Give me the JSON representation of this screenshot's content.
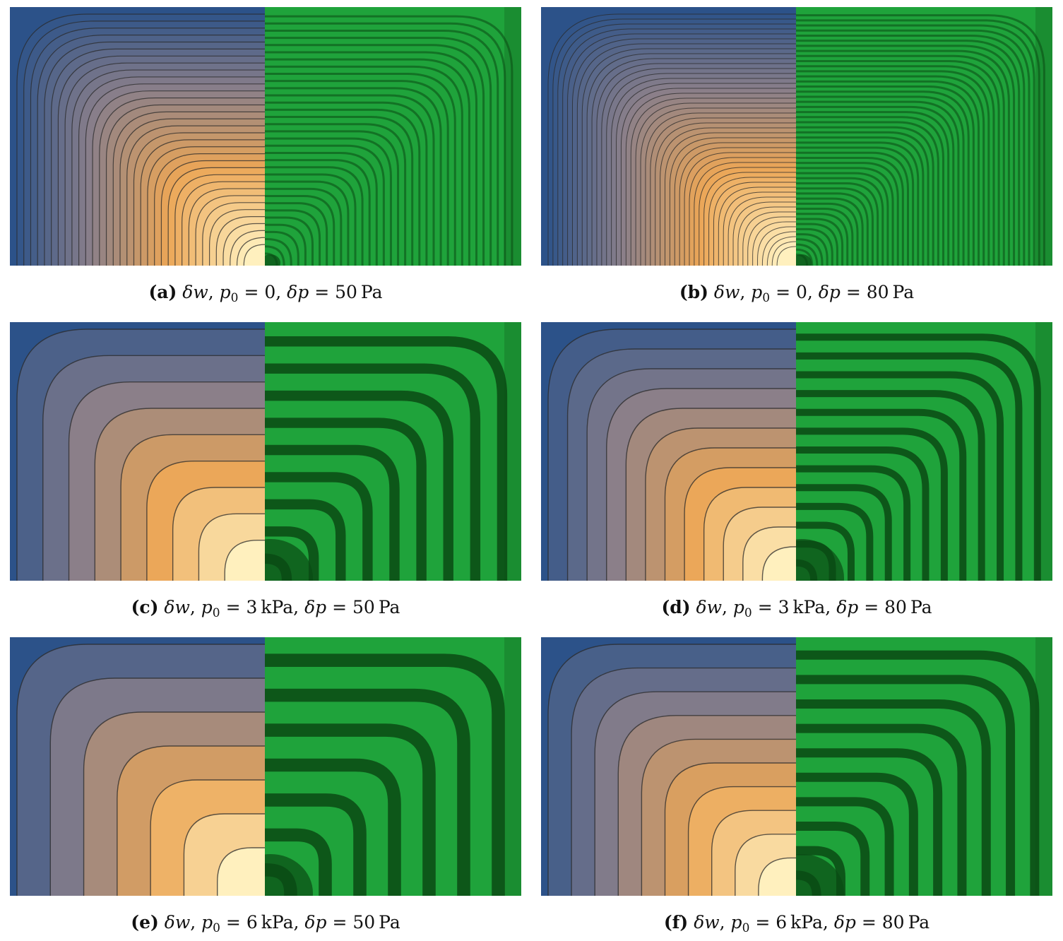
{
  "figure": {
    "panels": [
      {
        "id": "a",
        "label": "(a)",
        "var": "δw",
        "p0": "0",
        "dp": "50",
        "unit_dp": "Pa",
        "unit_p0": ""
      },
      {
        "id": "b",
        "label": "(b)",
        "var": "δw",
        "p0": "0",
        "dp": "80",
        "unit_dp": "Pa",
        "unit_p0": ""
      },
      {
        "id": "c",
        "label": "(c)",
        "var": "δw",
        "p0": "3",
        "dp": "50",
        "unit_dp": "Pa",
        "unit_p0": "kPa"
      },
      {
        "id": "d",
        "label": "(d)",
        "var": "δw",
        "p0": "3",
        "dp": "80",
        "unit_dp": "Pa",
        "unit_p0": "kPa"
      },
      {
        "id": "e",
        "label": "(e)",
        "var": "δw",
        "p0": "6",
        "dp": "50",
        "unit_dp": "Pa",
        "unit_p0": "kPa"
      },
      {
        "id": "f",
        "label": "(f)",
        "var": "δw",
        "p0": "6",
        "dp": "80",
        "unit_dp": "Pa",
        "unit_p0": "kPa"
      }
    ],
    "symbols": {
      "p": "p",
      "sub0": "0",
      "eq": "=",
      "comma": ","
    },
    "colors": {
      "contour_blue": "#2c5289",
      "contour_mid": "#8a7f8a",
      "contour_orange": "#eba657",
      "contour_light": "#fff0be",
      "fringe_green": "#1fa33b",
      "fringe_dark": "#0a4a14"
    }
  }
}
